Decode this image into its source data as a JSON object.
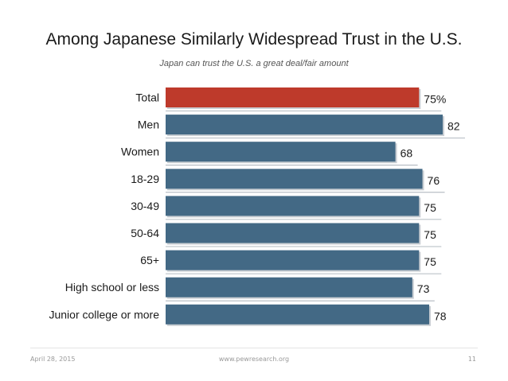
{
  "slide": {
    "title": "Among Japanese Similarly Widespread Trust in the U.S.",
    "subtitle": "Japan can trust the U.S. a great deal/fair amount"
  },
  "chart_data": {
    "type": "bar",
    "orientation": "horizontal",
    "title": "Among Japanese Similarly Widespread Trust in the U.S.",
    "subtitle": "Japan can trust the U.S. a great deal/fair amount",
    "categories": [
      "Total",
      "Men",
      "Women",
      "18-29",
      "30-49",
      "50-64",
      "65+",
      "High school or less",
      "Junior college or more"
    ],
    "values": [
      75,
      82,
      68,
      76,
      75,
      75,
      75,
      73,
      78
    ],
    "value_labels": [
      "75%",
      "82",
      "68",
      "76",
      "75",
      "75",
      "75",
      "73",
      "78"
    ],
    "highlight_index": 0,
    "colors": {
      "highlight": "#be3a2b",
      "bar": "#436985",
      "separator": "#9aa4ad"
    },
    "xlim": [
      0,
      82
    ],
    "grid": false,
    "legend": "none"
  },
  "footer": {
    "date": "April 28, 2015",
    "url": "www.pewresearch.org",
    "page": "11"
  }
}
